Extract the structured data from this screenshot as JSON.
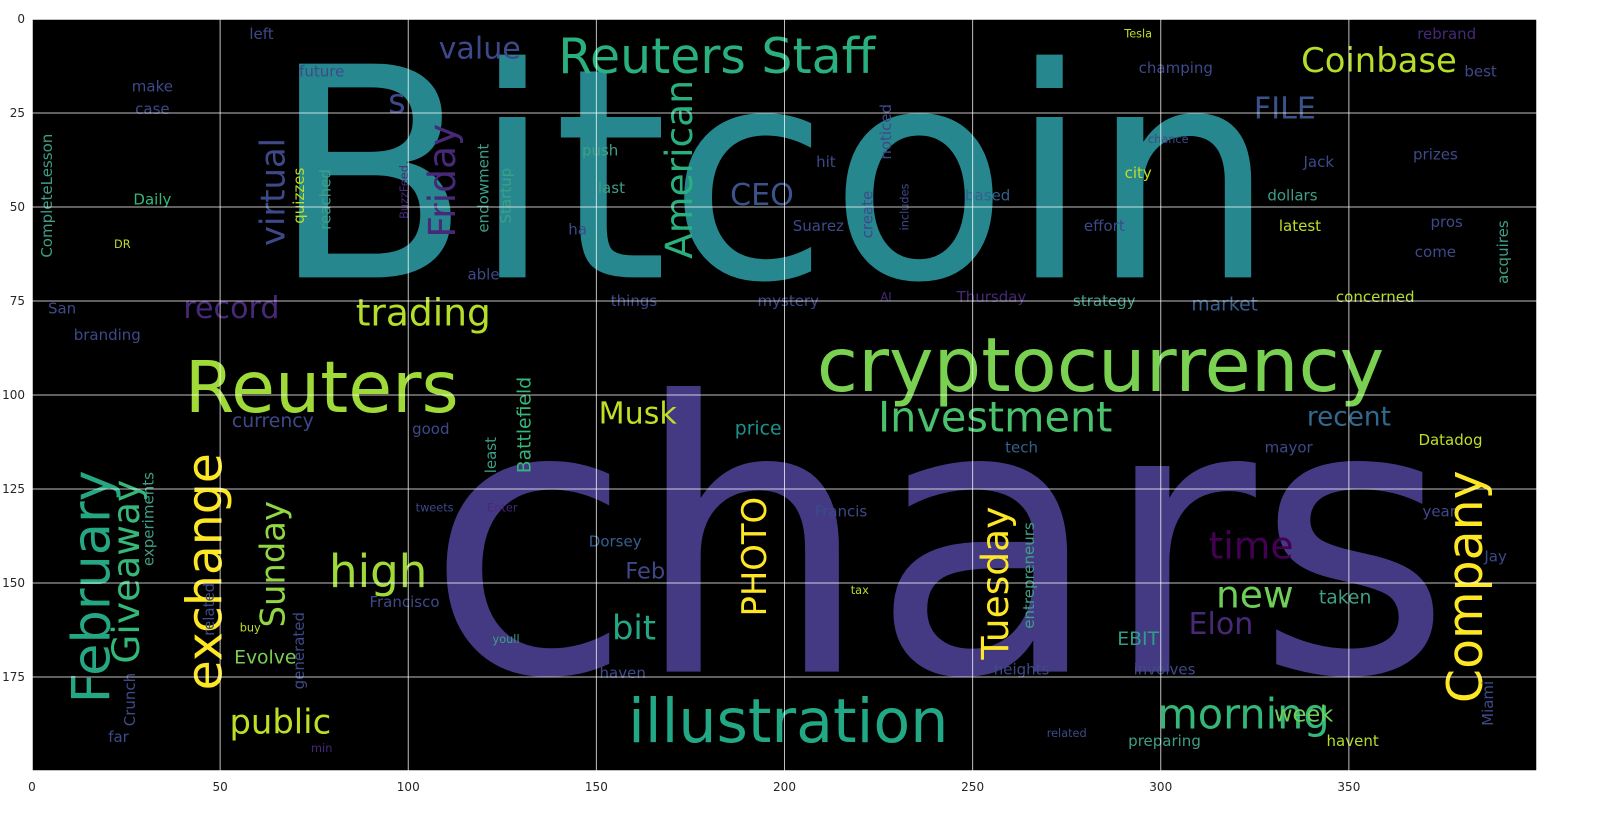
{
  "chart_data": {
    "type": "wordcloud",
    "title": "",
    "xlabel": "",
    "ylabel": "",
    "xlim": [
      0,
      400
    ],
    "ylim": [
      200,
      0
    ],
    "xticks": [
      0,
      50,
      100,
      150,
      200,
      250,
      300,
      350
    ],
    "yticks": [
      0,
      25,
      50,
      75,
      100,
      125,
      150,
      175
    ],
    "grid": true,
    "background": "#000000",
    "colormap": "viridis",
    "words": [
      {
        "text": "Bitcoin",
        "x": 197,
        "y": 42,
        "size": 78,
        "color": "#26888e",
        "vertical": false
      },
      {
        "text": "chars",
        "x": 241,
        "y": 139,
        "size": 100,
        "color": "#443a83",
        "vertical": false
      },
      {
        "text": "cryptocurrency",
        "x": 284,
        "y": 92,
        "size": 20,
        "color": "#7ad151",
        "vertical": false
      },
      {
        "text": "illustration",
        "x": 201,
        "y": 187,
        "size": 16,
        "color": "#22a884",
        "vertical": false
      },
      {
        "text": "Reuters",
        "x": 77,
        "y": 98,
        "size": 19,
        "color": "#a0da39",
        "vertical": false
      },
      {
        "text": "Reuters Staff",
        "x": 182,
        "y": 10,
        "size": 13,
        "color": "#2ab07f",
        "vertical": false
      },
      {
        "text": "trading",
        "x": 104,
        "y": 78,
        "size": 10,
        "color": "#b5de2b",
        "vertical": false
      },
      {
        "text": "high",
        "x": 92,
        "y": 147,
        "size": 12,
        "color": "#a0da39",
        "vertical": false
      },
      {
        "text": "morning",
        "x": 322,
        "y": 185,
        "size": 11,
        "color": "#35b779",
        "vertical": false
      },
      {
        "text": "new",
        "x": 325,
        "y": 153,
        "size": 10,
        "color": "#6ece58",
        "vertical": false
      },
      {
        "text": "Investment",
        "x": 256,
        "y": 106,
        "size": 11,
        "color": "#4ac16d",
        "vertical": false
      },
      {
        "text": "Coinbase",
        "x": 358,
        "y": 11,
        "size": 9,
        "color": "#b5de2b",
        "vertical": false
      },
      {
        "text": "value",
        "x": 119,
        "y": 8,
        "size": 8,
        "color": "#3e4989",
        "vertical": false
      },
      {
        "text": "FILE",
        "x": 333,
        "y": 24,
        "size": 8,
        "color": "#3b528b",
        "vertical": false
      },
      {
        "text": "time",
        "x": 324,
        "y": 140,
        "size": 10,
        "color": "#440154",
        "vertical": false
      },
      {
        "text": "Elon",
        "x": 316,
        "y": 161,
        "size": 8,
        "color": "#482878",
        "vertical": false
      },
      {
        "text": "record",
        "x": 53,
        "y": 77,
        "size": 8,
        "color": "#482878",
        "vertical": false
      },
      {
        "text": "public",
        "x": 66,
        "y": 187,
        "size": 9,
        "color": "#bddf26",
        "vertical": false
      },
      {
        "text": "Musk",
        "x": 161,
        "y": 105,
        "size": 8,
        "color": "#c2df23",
        "vertical": false
      },
      {
        "text": "bit",
        "x": 160,
        "y": 162,
        "size": 9,
        "color": "#26a784",
        "vertical": false
      },
      {
        "text": "Feb",
        "x": 163,
        "y": 147,
        "size": 6,
        "color": "#404688",
        "vertical": false
      },
      {
        "text": "CEO",
        "x": 194,
        "y": 47,
        "size": 8,
        "color": "#3b528b",
        "vertical": false
      },
      {
        "text": "recent",
        "x": 350,
        "y": 106,
        "size": 7,
        "color": "#31688e",
        "vertical": false
      },
      {
        "text": "week",
        "x": 338,
        "y": 185,
        "size": 6,
        "color": "#6ece58",
        "vertical": false
      },
      {
        "text": "market",
        "x": 317,
        "y": 76,
        "size": 5,
        "color": "#35608d",
        "vertical": false
      },
      {
        "text": "price",
        "x": 193,
        "y": 109,
        "size": 5,
        "color": "#21918c",
        "vertical": false
      },
      {
        "text": "currency",
        "x": 64,
        "y": 107,
        "size": 5,
        "color": "#3e4989",
        "vertical": false
      },
      {
        "text": "Evolve",
        "x": 62,
        "y": 170,
        "size": 5,
        "color": "#7ad151",
        "vertical": false
      },
      {
        "text": "taken",
        "x": 349,
        "y": 154,
        "size": 5,
        "color": "#3e9f86",
        "vertical": false
      },
      {
        "text": "EBIT",
        "x": 294,
        "y": 165,
        "size": 5,
        "color": "#2e9e89",
        "vertical": false
      },
      {
        "text": "Datadog",
        "x": 377,
        "y": 112,
        "size": 4,
        "color": "#bddf26",
        "vertical": false
      },
      {
        "text": "Francisco",
        "x": 99,
        "y": 155,
        "size": 4,
        "color": "#3e4989",
        "vertical": false
      },
      {
        "text": "Dorsey",
        "x": 155,
        "y": 139,
        "size": 4,
        "color": "#35608d",
        "vertical": false
      },
      {
        "text": "Francis",
        "x": 215,
        "y": 131,
        "size": 4,
        "color": "#3e4989",
        "vertical": false
      },
      {
        "text": "tweets",
        "x": 107,
        "y": 130,
        "size": 3,
        "color": "#3e4989",
        "vertical": false
      },
      {
        "text": "Enter",
        "x": 125,
        "y": 130,
        "size": 3,
        "color": "#482878",
        "vertical": false
      },
      {
        "text": "youll",
        "x": 126,
        "y": 165,
        "size": 3,
        "color": "#3e9f86",
        "vertical": false
      },
      {
        "text": "haven",
        "x": 157,
        "y": 174,
        "size": 4,
        "color": "#3e4989",
        "vertical": false
      },
      {
        "text": "tax",
        "x": 220,
        "y": 152,
        "size": 3,
        "color": "#b5de2b",
        "vertical": false
      },
      {
        "text": "heights",
        "x": 263,
        "y": 173,
        "size": 4,
        "color": "#3e4989",
        "vertical": false
      },
      {
        "text": "involves",
        "x": 301,
        "y": 173,
        "size": 4,
        "color": "#3e4989",
        "vertical": false
      },
      {
        "text": "preparing",
        "x": 301,
        "y": 192,
        "size": 4,
        "color": "#3e9f86",
        "vertical": false
      },
      {
        "text": "havent",
        "x": 351,
        "y": 192,
        "size": 4,
        "color": "#b5de2b",
        "vertical": false
      },
      {
        "text": "related",
        "x": 275,
        "y": 190,
        "size": 3,
        "color": "#3e4989",
        "vertical": false
      },
      {
        "text": "far",
        "x": 23,
        "y": 191,
        "size": 4,
        "color": "#3e4989",
        "vertical": false
      },
      {
        "text": "min",
        "x": 77,
        "y": 194,
        "size": 3,
        "color": "#482878",
        "vertical": false
      },
      {
        "text": "buy",
        "x": 58,
        "y": 162,
        "size": 3,
        "color": "#bddf26",
        "vertical": false
      },
      {
        "text": "mayor",
        "x": 334,
        "y": 114,
        "size": 4,
        "color": "#3e4989",
        "vertical": false
      },
      {
        "text": "tech",
        "x": 263,
        "y": 114,
        "size": 4,
        "color": "#35608d",
        "vertical": false
      },
      {
        "text": "good",
        "x": 106,
        "y": 109,
        "size": 4,
        "color": "#3e4989",
        "vertical": false
      },
      {
        "text": "left",
        "x": 61,
        "y": 4,
        "size": 4,
        "color": "#3e4989",
        "vertical": false
      },
      {
        "text": "future",
        "x": 77,
        "y": 14,
        "size": 4,
        "color": "#3e4989",
        "vertical": false
      },
      {
        "text": "make",
        "x": 32,
        "y": 18,
        "size": 4,
        "color": "#3e4989",
        "vertical": false
      },
      {
        "text": "case",
        "x": 32,
        "y": 24,
        "size": 4,
        "color": "#3e4989",
        "vertical": false
      },
      {
        "text": "Daily",
        "x": 32,
        "y": 48,
        "size": 4,
        "color": "#35b779",
        "vertical": false
      },
      {
        "text": "DR",
        "x": 24,
        "y": 60,
        "size": 3,
        "color": "#bddf26",
        "vertical": false
      },
      {
        "text": "San",
        "x": 8,
        "y": 77,
        "size": 4,
        "color": "#3e4989",
        "vertical": false
      },
      {
        "text": "branding",
        "x": 20,
        "y": 84,
        "size": 4,
        "color": "#3e4989",
        "vertical": false
      },
      {
        "text": "push",
        "x": 151,
        "y": 35,
        "size": 4,
        "color": "#3e9f86",
        "vertical": false
      },
      {
        "text": "last",
        "x": 154,
        "y": 45,
        "size": 4,
        "color": "#3e9f86",
        "vertical": false
      },
      {
        "text": "ha",
        "x": 145,
        "y": 56,
        "size": 4,
        "color": "#3e4989",
        "vertical": false
      },
      {
        "text": "hit",
        "x": 211,
        "y": 38,
        "size": 4,
        "color": "#3e4989",
        "vertical": false
      },
      {
        "text": "Suarez",
        "x": 209,
        "y": 55,
        "size": 4,
        "color": "#3e4989",
        "vertical": false
      },
      {
        "text": "things",
        "x": 160,
        "y": 75,
        "size": 4,
        "color": "#3e4989",
        "vertical": false
      },
      {
        "text": "mystery",
        "x": 201,
        "y": 75,
        "size": 4,
        "color": "#3e4989",
        "vertical": false
      },
      {
        "text": "AI",
        "x": 227,
        "y": 74,
        "size": 3,
        "color": "#482878",
        "vertical": false
      },
      {
        "text": "Thursday",
        "x": 255,
        "y": 74,
        "size": 4,
        "color": "#482878",
        "vertical": false
      },
      {
        "text": "strategy",
        "x": 285,
        "y": 75,
        "size": 4,
        "color": "#3e9f86",
        "vertical": false
      },
      {
        "text": "concerned",
        "x": 357,
        "y": 74,
        "size": 4,
        "color": "#b5de2b",
        "vertical": false
      },
      {
        "text": "based",
        "x": 254,
        "y": 47,
        "size": 4,
        "color": "#35608d",
        "vertical": false
      },
      {
        "text": "effort",
        "x": 285,
        "y": 55,
        "size": 4,
        "color": "#3e4989",
        "vertical": false
      },
      {
        "text": "city",
        "x": 294,
        "y": 41,
        "size": 4,
        "color": "#bddf26",
        "vertical": false
      },
      {
        "text": "latest",
        "x": 337,
        "y": 55,
        "size": 4,
        "color": "#bddf26",
        "vertical": false
      },
      {
        "text": "dollars",
        "x": 335,
        "y": 47,
        "size": 4,
        "color": "#3e9f86",
        "vertical": false
      },
      {
        "text": "Jack",
        "x": 342,
        "y": 38,
        "size": 4,
        "color": "#3e4989",
        "vertical": false
      },
      {
        "text": "champing",
        "x": 304,
        "y": 13,
        "size": 4,
        "color": "#3e4989",
        "vertical": false
      },
      {
        "text": "Tesla",
        "x": 294,
        "y": 4,
        "size": 3,
        "color": "#bddf26",
        "vertical": false
      },
      {
        "text": "rebrand",
        "x": 376,
        "y": 4,
        "size": 4,
        "color": "#482878",
        "vertical": false
      },
      {
        "text": "best",
        "x": 385,
        "y": 14,
        "size": 4,
        "color": "#3e4989",
        "vertical": false
      },
      {
        "text": "prizes",
        "x": 373,
        "y": 36,
        "size": 4,
        "color": "#3e4989",
        "vertical": false
      },
      {
        "text": "pros",
        "x": 376,
        "y": 54,
        "size": 4,
        "color": "#3e4989",
        "vertical": false
      },
      {
        "text": "come",
        "x": 373,
        "y": 62,
        "size": 4,
        "color": "#3e4989",
        "vertical": false
      },
      {
        "text": "year",
        "x": 374,
        "y": 131,
        "size": 4,
        "color": "#3e4989",
        "vertical": false
      },
      {
        "text": "Jay",
        "x": 389,
        "y": 143,
        "size": 4,
        "color": "#3e4989",
        "vertical": false
      },
      {
        "text": "able",
        "x": 120,
        "y": 68,
        "size": 4,
        "color": "#3e4989",
        "vertical": false
      },
      {
        "text": "chance",
        "x": 302,
        "y": 32,
        "size": 3,
        "color": "#3e4989",
        "vertical": false
      },
      {
        "text": "Crunch",
        "x": 26,
        "y": 181,
        "size": 4,
        "color": "#3e4989",
        "vertical": true
      },
      {
        "text": "February",
        "x": 16,
        "y": 151,
        "size": 14,
        "color": "#26a784",
        "vertical": true
      },
      {
        "text": "Giveaway",
        "x": 25,
        "y": 147,
        "size": 10,
        "color": "#35b779",
        "vertical": true
      },
      {
        "text": "exchange",
        "x": 46,
        "y": 147,
        "size": 13,
        "color": "#fde725",
        "vertical": true
      },
      {
        "text": "Sunday",
        "x": 64,
        "y": 145,
        "size": 9,
        "color": "#90d743",
        "vertical": true
      },
      {
        "text": "virtual",
        "x": 64,
        "y": 46,
        "size": 9,
        "color": "#3e4989",
        "vertical": true
      },
      {
        "text": "Friday",
        "x": 109,
        "y": 43,
        "size": 10,
        "color": "#482878",
        "vertical": true
      },
      {
        "text": "American",
        "x": 172,
        "y": 40,
        "size": 10,
        "color": "#2ab07f",
        "vertical": true
      },
      {
        "text": "Company",
        "x": 381,
        "y": 151,
        "size": 13,
        "color": "#fde725",
        "vertical": true
      },
      {
        "text": "Tuesday",
        "x": 256,
        "y": 150,
        "size": 10,
        "color": "#fde725",
        "vertical": true
      },
      {
        "text": "PHOTO",
        "x": 192,
        "y": 143,
        "size": 9,
        "color": "#fde725",
        "vertical": true
      },
      {
        "text": "Battlefield",
        "x": 131,
        "y": 108,
        "size": 5,
        "color": "#35b779",
        "vertical": true
      },
      {
        "text": "least",
        "x": 122,
        "y": 116,
        "size": 4,
        "color": "#3e9f86",
        "vertical": true
      },
      {
        "text": "experiments",
        "x": 31,
        "y": 133,
        "size": 4,
        "color": "#3e9f86",
        "vertical": true
      },
      {
        "text": "generated",
        "x": 71,
        "y": 168,
        "size": 4,
        "color": "#3e4989",
        "vertical": true
      },
      {
        "text": "related",
        "x": 47,
        "y": 157,
        "size": 4,
        "color": "#3e4989",
        "vertical": true
      },
      {
        "text": "CompleteLesson",
        "x": 4,
        "y": 47,
        "size": 4,
        "color": "#3e9f86",
        "vertical": true
      },
      {
        "text": "quizzes",
        "x": 71,
        "y": 47,
        "size": 4,
        "color": "#bddf26",
        "vertical": true
      },
      {
        "text": "reached",
        "x": 78,
        "y": 48,
        "size": 4,
        "color": "#3e9f86",
        "vertical": true
      },
      {
        "text": "BuzzFeed",
        "x": 99,
        "y": 46,
        "size": 3,
        "color": "#482878",
        "vertical": true
      },
      {
        "text": "endowment",
        "x": 120,
        "y": 45,
        "size": 4,
        "color": "#3e9f86",
        "vertical": true
      },
      {
        "text": "Startup",
        "x": 126,
        "y": 47,
        "size": 4,
        "color": "#3e9f86",
        "vertical": true
      },
      {
        "text": "create",
        "x": 222,
        "y": 52,
        "size": 4,
        "color": "#3e4989",
        "vertical": true
      },
      {
        "text": "noticed",
        "x": 227,
        "y": 30,
        "size": 4,
        "color": "#3e4989",
        "vertical": true
      },
      {
        "text": "includes",
        "x": 232,
        "y": 50,
        "size": 3,
        "color": "#3e4989",
        "vertical": true
      },
      {
        "text": "entrepreneurs",
        "x": 265,
        "y": 148,
        "size": 4,
        "color": "#3e9f86",
        "vertical": true
      },
      {
        "text": "acquires",
        "x": 391,
        "y": 62,
        "size": 4,
        "color": "#3e9f86",
        "vertical": true
      },
      {
        "text": "Miami",
        "x": 387,
        "y": 182,
        "size": 4,
        "color": "#3e4989",
        "vertical": true
      },
      {
        "text": "s",
        "x": 97,
        "y": 22,
        "size": 9,
        "color": "#3e4989",
        "vertical": false
      }
    ]
  }
}
